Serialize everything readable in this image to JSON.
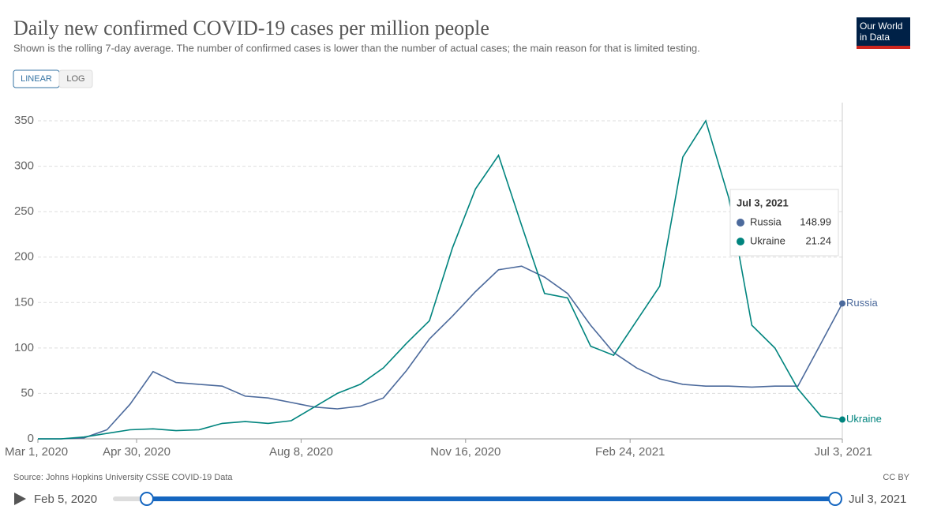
{
  "chart_data": {
    "type": "line",
    "title": "Daily new confirmed COVID-19 cases per million people",
    "subtitle": "Shown is the rolling 7-day average. The number of confirmed cases is lower than the number of actual cases; the main reason for that is limited testing.",
    "logo": "Our World in Data",
    "scale_buttons": [
      "LINEAR",
      "LOG"
    ],
    "log_scale": false,
    "grid": true,
    "x": [
      "2020-03-01",
      "2020-03-15",
      "2020-03-29",
      "2020-04-12",
      "2020-04-26",
      "2020-05-10",
      "2020-05-24",
      "2020-06-07",
      "2020-06-21",
      "2020-07-05",
      "2020-07-19",
      "2020-08-02",
      "2020-08-16",
      "2020-08-30",
      "2020-09-13",
      "2020-09-27",
      "2020-10-11",
      "2020-10-25",
      "2020-11-08",
      "2020-11-22",
      "2020-12-06",
      "2020-12-20",
      "2021-01-03",
      "2021-01-17",
      "2021-01-31",
      "2021-02-14",
      "2021-02-28",
      "2021-03-14",
      "2021-03-28",
      "2021-04-11",
      "2021-04-25",
      "2021-05-09",
      "2021-05-23",
      "2021-06-06",
      "2021-06-20",
      "2021-07-03"
    ],
    "series": [
      {
        "name": "Russia",
        "color": "#4c6a9c",
        "values": [
          0,
          0,
          1,
          10,
          38,
          74,
          62,
          60,
          58,
          47,
          45,
          40,
          35,
          33,
          36,
          45,
          75,
          110,
          135,
          162,
          186,
          190,
          178,
          160,
          125,
          95,
          78,
          66,
          60,
          58,
          58,
          57,
          58,
          58,
          105,
          148.99
        ]
      },
      {
        "name": "Ukraine",
        "color": "#00847e",
        "values": [
          0,
          0,
          2,
          6,
          10,
          11,
          9,
          10,
          17,
          19,
          17,
          20,
          35,
          50,
          60,
          78,
          105,
          130,
          210,
          275,
          312,
          235,
          160,
          155,
          102,
          92,
          130,
          168,
          310,
          350,
          265,
          125,
          100,
          55,
          25,
          21.24
        ]
      }
    ],
    "xlim": [
      "2020-03-01",
      "2021-07-03"
    ],
    "xticks": [
      {
        "value": "2020-03-01",
        "label": "Mar 1, 2020"
      },
      {
        "value": "2020-04-30",
        "label": "Apr 30, 2020"
      },
      {
        "value": "2020-08-08",
        "label": "Aug 8, 2020"
      },
      {
        "value": "2020-11-16",
        "label": "Nov 16, 2020"
      },
      {
        "value": "2021-02-24",
        "label": "Feb 24, 2021"
      },
      {
        "value": "2021-07-03",
        "label": "Jul 3, 2021"
      }
    ],
    "ylim": [
      0,
      370
    ],
    "yticks": [
      0,
      50,
      100,
      150,
      200,
      250,
      300,
      350
    ],
    "tooltip_date": "Jul 3, 2021",
    "source": "Source: Johns Hopkins University CSSE COVID-19 Data",
    "license": "CC BY",
    "timeline": {
      "start": "Feb 5, 2020",
      "end": "Jul 3, 2021"
    }
  }
}
